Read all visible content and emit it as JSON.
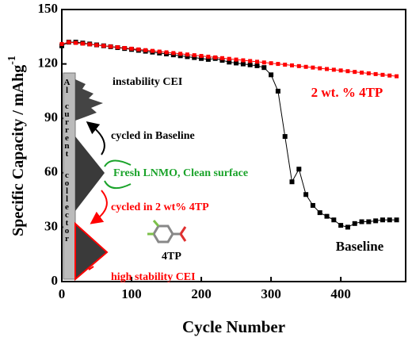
{
  "chart_data": {
    "type": "scatter",
    "x_label": "Cycle Number",
    "y_label": "Specific Capacity / mAhg",
    "y_label_superscript": "-1",
    "xlim": [
      0,
      493
    ],
    "ylim": [
      0,
      150
    ],
    "xticks": [
      0,
      100,
      200,
      300,
      400
    ],
    "yticks": [
      0,
      30,
      60,
      90,
      120,
      150
    ],
    "x": [
      0,
      10,
      20,
      30,
      40,
      50,
      60,
      70,
      80,
      90,
      100,
      110,
      120,
      130,
      140,
      150,
      160,
      170,
      180,
      190,
      200,
      210,
      220,
      230,
      240,
      250,
      260,
      270,
      280,
      290,
      300,
      310,
      320,
      330,
      340,
      350,
      360,
      370,
      380,
      390,
      400,
      410,
      420,
      430,
      440,
      450,
      460,
      470,
      480
    ],
    "series": [
      {
        "name": "Baseline",
        "color": "#000000",
        "values": [
          130,
          132,
          132,
          131.5,
          131,
          130.5,
          130,
          129.5,
          129,
          128.5,
          128,
          127.5,
          127,
          126.5,
          126,
          125.5,
          125,
          124.5,
          124,
          123.5,
          123,
          122.5,
          123,
          122,
          121,
          120.5,
          120,
          119.5,
          119,
          118,
          114,
          105,
          80,
          55,
          62,
          48,
          42,
          38,
          36,
          34,
          31,
          30,
          32,
          33,
          33,
          33.5,
          34,
          34,
          34
        ]
      },
      {
        "name": "2 wt. % 4TP",
        "color": "#ff0000",
        "values": [
          131,
          132,
          131.6,
          131.2,
          130.8,
          130.4,
          130,
          129.6,
          129.2,
          128.8,
          128.4,
          128,
          127.6,
          127.2,
          126.8,
          126.4,
          126,
          125.6,
          125.2,
          124.8,
          124.4,
          124,
          123.6,
          123.2,
          122.8,
          122.4,
          122,
          121.6,
          121.2,
          120.8,
          120.4,
          120,
          119.6,
          119.2,
          118.8,
          118.4,
          118,
          117.6,
          117.2,
          116.8,
          116.4,
          116,
          115.6,
          115.2,
          114.8,
          114.4,
          114,
          113.6,
          113.2
        ]
      }
    ],
    "inset": {
      "collector": [
        "Al",
        "current",
        "collector"
      ],
      "instability": "instability CEI",
      "cycled_baseline": "cycled in Baseline",
      "fresh": "Fresh LNMO, Clean surface",
      "cycled_4tp": "cycled in 2 wt% 4TP",
      "molecule": "4TP",
      "high_stability": "high stability CEI"
    }
  }
}
